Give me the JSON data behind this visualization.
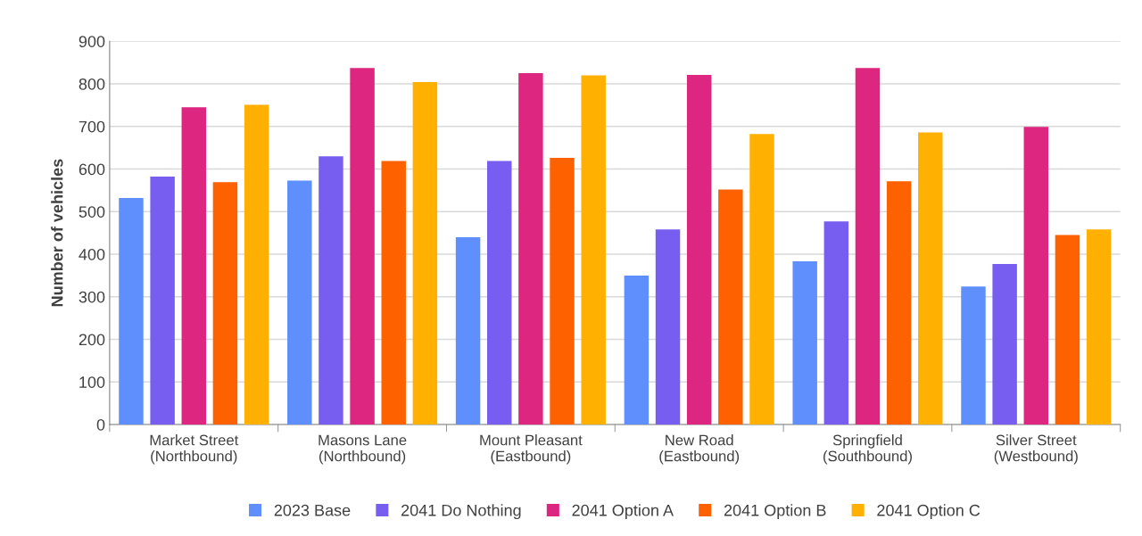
{
  "chart_data": {
    "type": "bar",
    "ylabel": "Number of vehicles",
    "categories": [
      "Market Street\n(Northbound)",
      "Masons Lane\n(Northbound)",
      "Mount Pleasant\n(Eastbound)",
      "New Road\n(Eastbound)",
      "Springfield\n(Southbound)",
      "Silver Street\n(Westbound)"
    ],
    "series": [
      {
        "name": "2023 Base",
        "color": "#5f8ffc",
        "values": [
          532,
          573,
          440,
          350,
          383,
          324
        ]
      },
      {
        "name": "2041 Do Nothing",
        "color": "#785ef0",
        "values": [
          582,
          630,
          619,
          458,
          477,
          377
        ]
      },
      {
        "name": "2041 Option A",
        "color": "#dc267f",
        "values": [
          745,
          837,
          825,
          821,
          837,
          699
        ]
      },
      {
        "name": "2041 Option B",
        "color": "#fe6100",
        "values": [
          569,
          619,
          626,
          552,
          571,
          445
        ]
      },
      {
        "name": "2041 Option C",
        "color": "#ffb000",
        "values": [
          751,
          804,
          820,
          682,
          686,
          458
        ]
      }
    ],
    "ylim": [
      0,
      900
    ],
    "yticks": [
      0,
      100,
      200,
      300,
      400,
      500,
      600,
      700,
      800,
      900
    ],
    "grid": "y",
    "legend": "bottom"
  }
}
